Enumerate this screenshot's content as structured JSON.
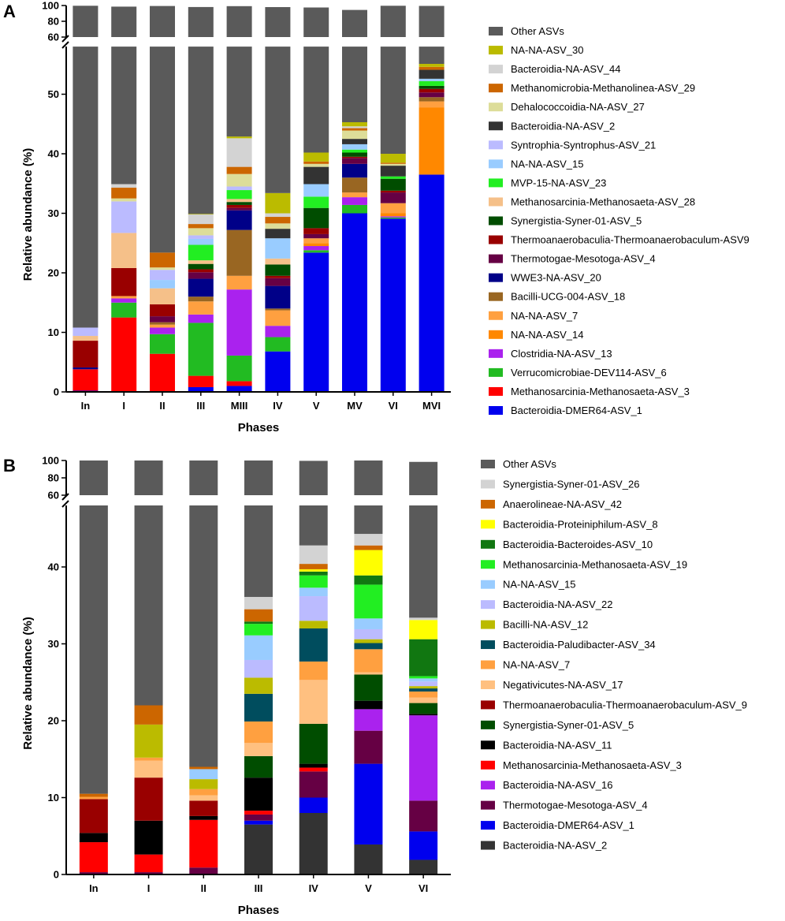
{
  "chart_data": [
    {
      "panel": "A",
      "type": "bar",
      "stacked": true,
      "axis_break": [
        58,
        60
      ],
      "ylim": [
        0,
        100
      ],
      "yticks": [
        0,
        10,
        20,
        30,
        40,
        50
      ],
      "yticks_upper": [
        60,
        80,
        100
      ],
      "xlabel": "Phases",
      "ylabel": "Relative abundance (%)",
      "categories": [
        "In",
        "I",
        "II",
        "III",
        "MIII",
        "IV",
        "V",
        "MV",
        "VI",
        "MVI"
      ],
      "series": [
        {
          "name": "Bacteroidia-DMER64-ASV_1",
          "color": "#0000ee",
          "values": [
            0.2,
            0,
            0,
            0.8,
            1.0,
            6.8,
            23.4,
            30.0,
            29.1,
            36.5
          ]
        },
        {
          "name": "Methanosarcinia-Methanosaeta-ASV_3",
          "color": "#ff0000",
          "values": [
            3.6,
            12.5,
            6.4,
            1.9,
            0.8,
            0,
            0,
            0,
            0,
            0
          ]
        },
        {
          "name": "Verrucomicrobiae-DEV114-ASV_6",
          "color": "#22bb22",
          "values": [
            0,
            2.5,
            3.3,
            8.9,
            4.3,
            2.4,
            0.4,
            1.4,
            0.2,
            0
          ]
        },
        {
          "name": "Clostridia-NA-ASV_13",
          "color": "#aa22ee",
          "values": [
            0,
            0.7,
            1.1,
            1.4,
            11.1,
            1.9,
            0.7,
            1.3,
            0.2,
            0
          ]
        },
        {
          "name": "NA-NA-ASV_14",
          "color": "#ff8800",
          "values": [
            0,
            0,
            0,
            0,
            0,
            0,
            0.5,
            0,
            0.5,
            11.3
          ]
        },
        {
          "name": "NA-NA-ASV_7",
          "color": "#ffa040",
          "values": [
            0,
            0.4,
            0.5,
            2.2,
            2.3,
            2.6,
            0.8,
            0.8,
            1.7,
            1.0
          ]
        },
        {
          "name": "Bacilli-UCG-004-ASV_18",
          "color": "#996622",
          "values": [
            0,
            0,
            0.4,
            0.8,
            7.7,
            0.3,
            0,
            2.5,
            0,
            0.7
          ]
        },
        {
          "name": "WWE3-NA-ASV_20",
          "color": "#000088",
          "values": [
            0.3,
            0,
            0,
            3.0,
            3.3,
            3.8,
            0,
            2.3,
            0,
            0
          ]
        },
        {
          "name": "Thermotogae-Mesotoga-ASV_4",
          "color": "#660044",
          "values": [
            0,
            0,
            1.0,
            1.1,
            0.4,
            1.3,
            0.7,
            1.0,
            1.8,
            0.8
          ]
        },
        {
          "name": "Thermoanaerobaculia-Thermoanaerobaculum-ASV9",
          "color": "#990000",
          "values": [
            4.5,
            4.7,
            2.0,
            0.5,
            0.5,
            0.4,
            1.0,
            0.2,
            0.3,
            0.6
          ]
        },
        {
          "name": "Synergistia-Syner-01-ASV_5",
          "color": "#004d00",
          "values": [
            0,
            0,
            0,
            0.9,
            0.5,
            1.9,
            3.4,
            0.7,
            2.0,
            0.5
          ]
        },
        {
          "name": "Methanosarcinia-Methanosaeta-ASV_28",
          "color": "#f5c089",
          "values": [
            0.8,
            5.9,
            2.7,
            0.6,
            0.5,
            1.0,
            0,
            0,
            0,
            0
          ]
        },
        {
          "name": "MVP-15-NA-ASV_23",
          "color": "#22ee22",
          "values": [
            0,
            0,
            0,
            2.6,
            1.5,
            0,
            1.9,
            0.5,
            0.4,
            0.8
          ]
        },
        {
          "name": "NA-NA-ASV_15",
          "color": "#99ccff",
          "values": [
            0,
            0,
            1.4,
            1.0,
            0,
            3.4,
            2.1,
            0.9,
            0,
            0.4
          ]
        },
        {
          "name": "Syntrophia-Syntrophus-ASV_21",
          "color": "#bbbbff",
          "values": [
            1.4,
            5.3,
            1.7,
            0.6,
            0.6,
            0,
            0,
            0,
            0,
            0
          ]
        },
        {
          "name": "Bacteroidia-NA-ASV_2",
          "color": "#333333",
          "values": [
            0,
            0,
            0,
            0,
            0,
            1.6,
            2.9,
            0.9,
            1.8,
            1.5
          ]
        },
        {
          "name": "Dehalococcoidia-NA-ASV_27",
          "color": "#dddd99",
          "values": [
            0,
            0.5,
            0.4,
            1.2,
            2.1,
            0.9,
            0.5,
            1.4,
            0.3,
            0
          ]
        },
        {
          "name": "Methanomicrobia-Methanolinea-ASV_29",
          "color": "#cc6600",
          "values": [
            0,
            1.8,
            2.5,
            0.7,
            1.2,
            1.1,
            0.4,
            0.4,
            0.2,
            0.5
          ]
        },
        {
          "name": "Bacteroidia-NA-ASV_44",
          "color": "#d3d3d3",
          "values": [
            0,
            0.6,
            0,
            1.6,
            4.8,
            0.6,
            0,
            0.3,
            0,
            0
          ]
        },
        {
          "name": "NA-NA-ASV_30",
          "color": "#bbbb00",
          "values": [
            0,
            0,
            0,
            0.1,
            0.3,
            3.4,
            1.5,
            0.7,
            1.5,
            0.5
          ]
        },
        {
          "name": "Other ASVs",
          "color": "#5a5a5a",
          "values": [
            88.9,
            63.7,
            76.0,
            68.2,
            56.3,
            64.6,
            57.3,
            49.1,
            59.7,
            44.4
          ]
        }
      ],
      "legend": [
        "Other ASVs",
        "NA-NA-ASV_30",
        "Bacteroidia-NA-ASV_44",
        "Methanomicrobia-Methanolinea-ASV_29",
        "Dehalococcoidia-NA-ASV_27",
        "Bacteroidia-NA-ASV_2",
        "Syntrophia-Syntrophus-ASV_21",
        "NA-NA-ASV_15",
        "MVP-15-NA-ASV_23",
        "Methanosarcinia-Methanosaeta-ASV_28",
        "Synergistia-Syner-01-ASV_5",
        "Thermoanaerobaculia-Thermoanaerobaculum-ASV9",
        "Thermotogae-Mesotoga-ASV_4",
        "WWE3-NA-ASV_20",
        "Bacilli-UCG-004-ASV_18",
        "NA-NA-ASV_7",
        "NA-NA-ASV_14",
        "Clostridia-NA-ASV_13",
        "Verrucomicrobiae-DEV114-ASV_6",
        "Methanosarcinia-Methanosaeta-ASV_3",
        "Bacteroidia-DMER64-ASV_1"
      ]
    },
    {
      "panel": "B",
      "type": "bar",
      "stacked": true,
      "axis_break": [
        48,
        60
      ],
      "ylim": [
        0,
        100
      ],
      "yticks": [
        0,
        10,
        20,
        30,
        40
      ],
      "yticks_upper": [
        60,
        80,
        100
      ],
      "xlabel": "Phases",
      "ylabel": "Relative abundance (%)",
      "categories": [
        "In",
        "I",
        "II",
        "III",
        "IV",
        "V",
        "VI"
      ],
      "series": [
        {
          "name": "Bacteroidia-NA-ASV_2",
          "color": "#333333",
          "values": [
            0,
            0,
            0,
            6.5,
            8.0,
            3.9,
            1.9
          ]
        },
        {
          "name": "Bacteroidia-DMER64-ASV_1",
          "color": "#0000ee",
          "values": [
            0,
            0,
            0,
            0.5,
            2.0,
            10.5,
            3.7
          ]
        },
        {
          "name": "Thermotogae-Mesotoga-ASV_4",
          "color": "#660044",
          "values": [
            0.3,
            0.3,
            0.9,
            0.8,
            3.4,
            4.3,
            4.0
          ]
        },
        {
          "name": "Bacteroidia-NA-ASV_16",
          "color": "#aa22ee",
          "values": [
            0,
            0,
            0,
            0,
            0,
            2.8,
            11.1
          ]
        },
        {
          "name": "Methanosarcinia-Methanosaeta-ASV_3",
          "color": "#ff0000",
          "values": [
            3.9,
            2.3,
            6.2,
            0.5,
            0.5,
            0,
            0
          ]
        },
        {
          "name": "Bacteroidia-NA-ASV_11",
          "color": "#000000",
          "values": [
            1.2,
            4.4,
            0.5,
            4.3,
            0.5,
            1.1,
            0.2
          ]
        },
        {
          "name": "Synergistia-Syner-01-ASV_5",
          "color": "#004d00",
          "values": [
            0,
            0,
            0,
            2.8,
            5.2,
            3.4,
            1.4
          ]
        },
        {
          "name": "Thermoanaerobaculia-Thermoanaerobaculum-ASV_9",
          "color": "#990000",
          "values": [
            4.4,
            5.6,
            2.0,
            0,
            0,
            0,
            0
          ]
        },
        {
          "name": "Negativicutes-NA-ASV_17",
          "color": "#ffc080",
          "values": [
            0,
            2.2,
            0.7,
            1.7,
            5.7,
            0.3,
            0.7
          ]
        },
        {
          "name": "NA-NA-ASV_7",
          "color": "#ffa040",
          "values": [
            0.3,
            0.4,
            0.8,
            2.8,
            2.4,
            3.0,
            0.8
          ]
        },
        {
          "name": "Bacteroidia-Paludibacter-ASV_34",
          "color": "#004d5e",
          "values": [
            0,
            0,
            0,
            3.6,
            4.3,
            0.8,
            0.4
          ]
        },
        {
          "name": "Bacilli-NA-ASV_12",
          "color": "#bbbb00",
          "values": [
            0,
            4.3,
            1.3,
            2.1,
            1.0,
            0.5,
            0.3
          ]
        },
        {
          "name": "Bacteroidia-NA-ASV_22",
          "color": "#bbbbff",
          "values": [
            0,
            0,
            0,
            2.3,
            3.2,
            1.3,
            0.6
          ]
        },
        {
          "name": "NA-NA-ASV_15",
          "color": "#99ccff",
          "values": [
            0,
            0,
            1.3,
            3.2,
            1.1,
            1.4,
            0.4
          ]
        },
        {
          "name": "Methanosarcinia-Methanosaeta-ASV_19",
          "color": "#22ee22",
          "values": [
            0,
            0,
            0,
            1.5,
            1.6,
            4.4,
            0.3
          ]
        },
        {
          "name": "Bacteroidia-Bacteroides-ASV_10",
          "color": "#117711",
          "values": [
            0,
            0,
            0,
            0.3,
            0.5,
            1.2,
            4.8
          ]
        },
        {
          "name": "Bacteroidia-Proteiniphilum-ASV_8",
          "color": "#ffff00",
          "values": [
            0,
            0,
            0,
            0,
            0.3,
            3.3,
            2.5
          ]
        },
        {
          "name": "Anaerolineae-NA-ASV_42",
          "color": "#cc6600",
          "values": [
            0.4,
            2.5,
            0.3,
            1.6,
            0.7,
            0.6,
            0
          ]
        },
        {
          "name": "Synergistia-Syner-01-ASV_26",
          "color": "#d3d3d3",
          "values": [
            0,
            0,
            0,
            1.6,
            2.4,
            1.5,
            0.3
          ]
        },
        {
          "name": "Other ASVs",
          "color": "#5a5a5a",
          "values": [
            89.5,
            78.0,
            86.0,
            63.9,
            56.8,
            55.7,
            65.0
          ]
        }
      ],
      "legend": [
        "Other ASVs",
        "Synergistia-Syner-01-ASV_26",
        "Anaerolineae-NA-ASV_42",
        "Bacteroidia-Proteiniphilum-ASV_8",
        "Bacteroidia-Bacteroides-ASV_10",
        "Methanosarcinia-Methanosaeta-ASV_19",
        "NA-NA-ASV_15",
        "Bacteroidia-NA-ASV_22",
        "Bacilli-NA-ASV_12",
        "Bacteroidia-Paludibacter-ASV_34",
        "NA-NA-ASV_7",
        "Negativicutes-NA-ASV_17",
        "Thermoanaerobaculia-Thermoanaerobaculum-ASV_9",
        "Synergistia-Syner-01-ASV_5",
        "Bacteroidia-NA-ASV_11",
        "Methanosarcinia-Methanosaeta-ASV_3",
        "Bacteroidia-NA-ASV_16",
        "Thermotogae-Mesotoga-ASV_4",
        "Bacteroidia-DMER64-ASV_1",
        "Bacteroidia-NA-ASV_2"
      ]
    }
  ]
}
